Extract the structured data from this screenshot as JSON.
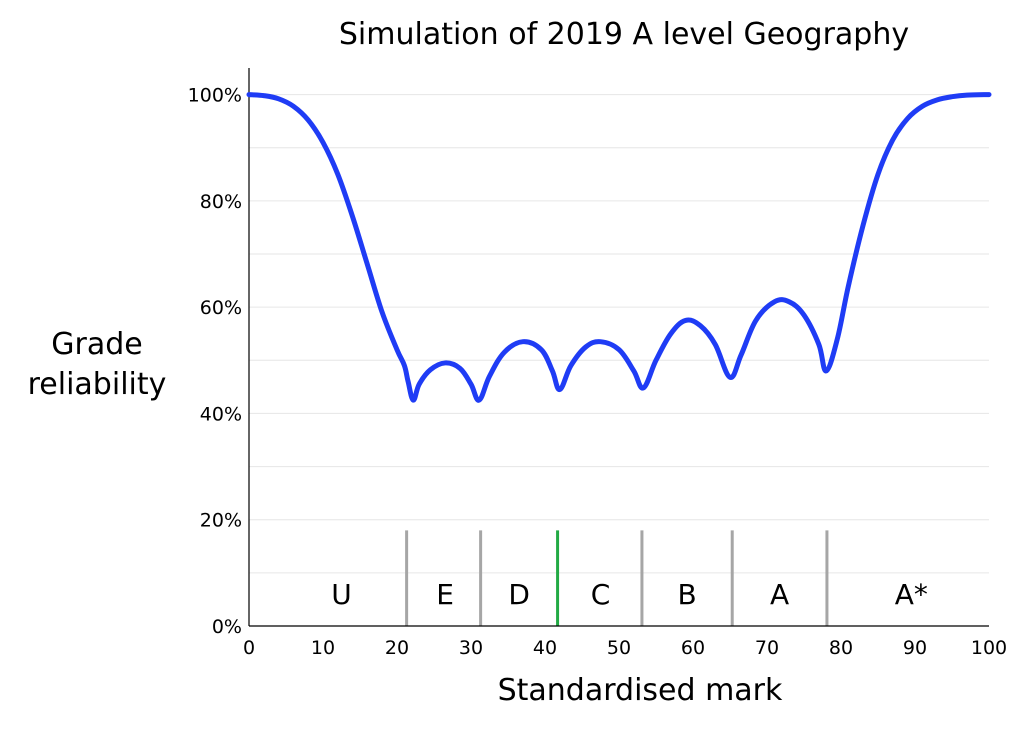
{
  "chart_data": {
    "type": "line",
    "title": "Simulation of 2019 A level Geography",
    "xlabel": "Standardised mark",
    "ylabel_lines": [
      "Grade",
      "reliability"
    ],
    "xlim": [
      0,
      100
    ],
    "ylim": [
      0,
      1.05
    ],
    "grid": true,
    "x_ticks": [
      0,
      10,
      20,
      30,
      40,
      50,
      60,
      70,
      80,
      90,
      100
    ],
    "y_ticks": [
      {
        "value": 0,
        "label": "0%"
      },
      {
        "value": 0.2,
        "label": "20%"
      },
      {
        "value": 0.4,
        "label": "40%"
      },
      {
        "value": 0.6,
        "label": "60%"
      },
      {
        "value": 0.8,
        "label": "80%"
      },
      {
        "value": 1.0,
        "label": "100%"
      }
    ],
    "series": [
      {
        "color": "#1f3cf5",
        "points": [
          [
            0,
            1.0
          ],
          [
            2,
            0.998
          ],
          [
            4,
            0.992
          ],
          [
            6,
            0.978
          ],
          [
            8,
            0.952
          ],
          [
            10,
            0.91
          ],
          [
            12,
            0.85
          ],
          [
            14,
            0.77
          ],
          [
            16,
            0.68
          ],
          [
            18,
            0.59
          ],
          [
            20,
            0.52
          ],
          [
            21,
            0.49
          ],
          [
            21.5,
            0.46
          ],
          [
            22.2,
            0.425
          ],
          [
            23,
            0.455
          ],
          [
            24.5,
            0.482
          ],
          [
            26.5,
            0.495
          ],
          [
            28.5,
            0.485
          ],
          [
            30,
            0.455
          ],
          [
            31.1,
            0.425
          ],
          [
            32.5,
            0.47
          ],
          [
            34.5,
            0.515
          ],
          [
            37,
            0.535
          ],
          [
            39.5,
            0.52
          ],
          [
            41,
            0.48
          ],
          [
            42,
            0.445
          ],
          [
            43.5,
            0.49
          ],
          [
            45.5,
            0.525
          ],
          [
            47.5,
            0.535
          ],
          [
            50,
            0.52
          ],
          [
            52,
            0.48
          ],
          [
            53.3,
            0.448
          ],
          [
            55,
            0.5
          ],
          [
            57,
            0.55
          ],
          [
            59,
            0.575
          ],
          [
            61,
            0.565
          ],
          [
            63,
            0.53
          ],
          [
            65,
            0.468
          ],
          [
            66.5,
            0.51
          ],
          [
            68.5,
            0.575
          ],
          [
            71,
            0.61
          ],
          [
            73,
            0.61
          ],
          [
            75,
            0.585
          ],
          [
            77,
            0.53
          ],
          [
            78,
            0.48
          ],
          [
            79.5,
            0.54
          ],
          [
            81,
            0.64
          ],
          [
            83,
            0.755
          ],
          [
            85,
            0.85
          ],
          [
            87,
            0.915
          ],
          [
            89,
            0.955
          ],
          [
            91,
            0.978
          ],
          [
            93,
            0.99
          ],
          [
            95,
            0.996
          ],
          [
            97,
            0.999
          ],
          [
            100,
            1.0
          ]
        ]
      }
    ],
    "boundaries": [
      {
        "x": 21.3,
        "color": "#a6a6a6"
      },
      {
        "x": 31.3,
        "color": "#a6a6a6"
      },
      {
        "x": 41.7,
        "color": "#22aa44"
      },
      {
        "x": 53.1,
        "color": "#a6a6a6"
      },
      {
        "x": 65.3,
        "color": "#a6a6a6"
      },
      {
        "x": 78.1,
        "color": "#a6a6a6"
      }
    ],
    "boundary_top": 0.18,
    "grades": [
      {
        "label": "U",
        "x": 12.5
      },
      {
        "label": "E",
        "x": 26.5
      },
      {
        "label": "D",
        "x": 36.5
      },
      {
        "label": "C",
        "x": 47.5
      },
      {
        "label": "B",
        "x": 59.2
      },
      {
        "label": "A",
        "x": 71.7
      },
      {
        "label": "A*",
        "x": 89.5
      }
    ],
    "grade_label_y": 0.06
  }
}
